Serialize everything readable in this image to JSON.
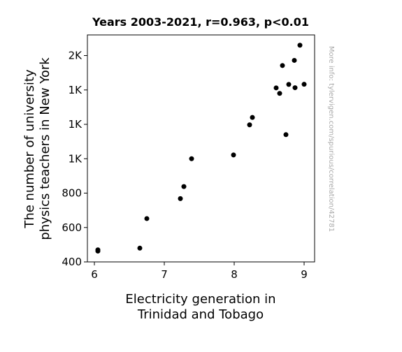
{
  "chart_data": {
    "type": "scatter",
    "title": "Years 2003-2021, r=0.963, p<0.01",
    "xlabel": [
      "Electricity generation in",
      "Trinidad and Tobago"
    ],
    "ylabel": [
      "The number of university",
      "physics teachers in New York"
    ],
    "side_note": "More info: tylervigen.com/spurious/correlation/42781",
    "xlim": [
      5.9,
      9.15
    ],
    "ylim": [
      400,
      1720
    ],
    "x_ticks": [
      6,
      7,
      8,
      9
    ],
    "x_tick_labels": [
      "6",
      "7",
      "8",
      "9"
    ],
    "y_ticks": [
      400,
      600,
      800,
      1000,
      1200,
      1400,
      1600
    ],
    "y_tick_labels": [
      "400",
      "600",
      "800",
      "1K",
      "1K",
      "1K",
      "2K"
    ],
    "grid": false,
    "marker_color": "#000000",
    "points": [
      {
        "x": 6.05,
        "y": 470
      },
      {
        "x": 6.05,
        "y": 463
      },
      {
        "x": 6.65,
        "y": 480
      },
      {
        "x": 6.75,
        "y": 652
      },
      {
        "x": 7.23,
        "y": 768
      },
      {
        "x": 7.28,
        "y": 838
      },
      {
        "x": 7.39,
        "y": 1000
      },
      {
        "x": 7.99,
        "y": 1022
      },
      {
        "x": 8.22,
        "y": 1197
      },
      {
        "x": 8.26,
        "y": 1240
      },
      {
        "x": 8.6,
        "y": 1412
      },
      {
        "x": 8.65,
        "y": 1380
      },
      {
        "x": 8.69,
        "y": 1542
      },
      {
        "x": 8.74,
        "y": 1140
      },
      {
        "x": 8.78,
        "y": 1432
      },
      {
        "x": 8.86,
        "y": 1572
      },
      {
        "x": 8.87,
        "y": 1413
      },
      {
        "x": 8.94,
        "y": 1660
      },
      {
        "x": 9.0,
        "y": 1433
      }
    ]
  }
}
